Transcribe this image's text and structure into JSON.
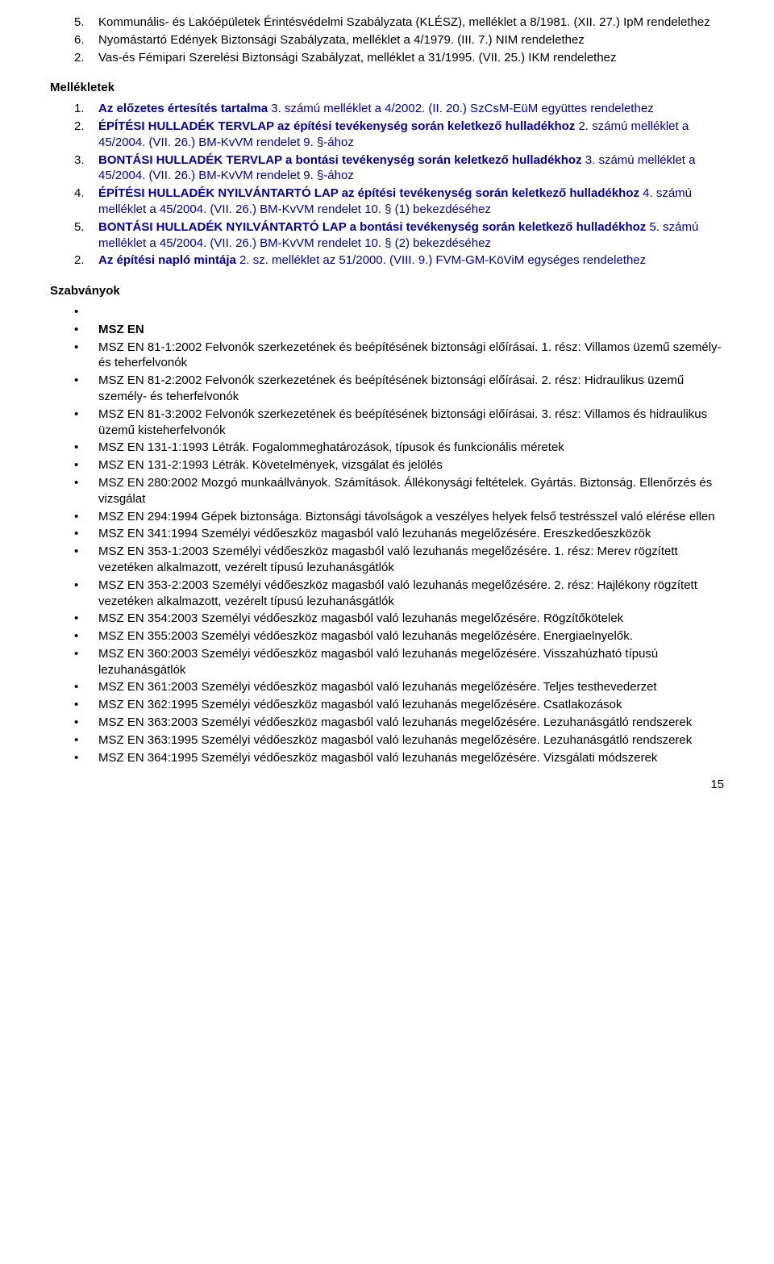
{
  "top_list": [
    {
      "n": "5.",
      "t": "Kommunális- és Lakóépületek Érintésvédelmi Szabályzata (KLÉSZ), melléklet a 8/1981. (XII. 27.) IpM rendelethez"
    },
    {
      "n": "6.",
      "t": "Nyomástartó Edények Biztonsági Szabályzata, melléklet a 4/1979. (III. 7.) NIM rendelethez"
    },
    {
      "n": "2.",
      "t": "Vas-és Fémipari Szerelési Biztonsági Szabályzat, melléklet a 31/1995. (VII. 25.) IKM rendelethez"
    }
  ],
  "mellekletek_heading": "Mellékletek",
  "mellekletek": [
    {
      "n": "1.",
      "bold": "Az előzetes értesítés tartalma",
      "rest": " 3. számú melléklet a 4/2002. (II. 20.) SzCsM-EüM együttes rendelethez"
    },
    {
      "n": "2.",
      "bold": "ÉPÍTÉSI HULLADÉK TERVLAP az építési tevékenység során keletkező hulladékhoz",
      "rest": " 2. számú melléklet a 45/2004. (VII. 26.) BM-KvVM rendelet 9. §-ához"
    },
    {
      "n": "3.",
      "bold": "BONTÁSI HULLADÉK TERVLAP a bontási tevékenység során keletkező hulladékhoz",
      "rest": " 3. számú melléklet a 45/2004. (VII. 26.) BM-KvVM rendelet 9. §-ához"
    },
    {
      "n": "4.",
      "bold": "ÉPÍTÉSI HULLADÉK NYILVÁNTARTÓ LAP az építési tevékenység során keletkező hulladékhoz",
      "rest": " 4. számú melléklet a 45/2004. (VII. 26.) BM-KvVM rendelet 10. § (1) bekezdéséhez"
    },
    {
      "n": "5.",
      "bold": "BONTÁSI HULLADÉK NYILVÁNTARTÓ LAP a bontási tevékenység során keletkező hulladékhoz",
      "rest": " 5. számú melléklet a 45/2004. (VII. 26.) BM-KvVM rendelet 10. § (2) bekezdéséhez"
    },
    {
      "n": "2.",
      "bold": "Az építési napló mintája",
      "rest": " 2. sz. melléklet az 51/2000. (VIII. 9.) FVM-GM-KöViM egységes rendelethez"
    }
  ],
  "szabvanyok_heading": "Szabványok",
  "msz_en_heading": "MSZ EN",
  "standards": [
    "MSZ EN 81-1:2002 Felvonók szerkezetének és beépítésének biztonsági előírásai. 1. rész: Villamos üzemű személy- és teherfelvonók",
    "MSZ EN 81-2:2002 Felvonók szerkezetének és beépítésének biztonsági előírásai. 2. rész: Hidraulikus üzemű személy- és teherfelvonók",
    "MSZ EN 81-3:2002 Felvonók szerkezetének és beépítésének biztonsági előírásai. 3. rész: Villamos és hidraulikus üzemű kisteherfelvonók",
    "MSZ EN 131-1:1993 Létrák. Fogalommeghatározások, típusok és funkcionális méretek",
    "MSZ EN 131-2:1993 Létrák. Követelmények, vizsgálat és jelölés",
    "MSZ EN 280:2002 Mozgó munkaállványok. Számítások. Állékonysági feltételek. Gyártás. Biztonság. Ellenőrzés és vizsgálat",
    "MSZ EN 294:1994 Gépek biztonsága. Biztonsági távolságok a veszélyes helyek felső testrésszel való elérése ellen",
    "MSZ EN 341:1994 Személyi védőeszköz magasból való lezuhanás megelőzésére. Ereszkedőeszközök",
    "MSZ EN 353-1:2003 Személyi védőeszköz magasból való lezuhanás megelőzésére. 1. rész: Merev rögzített vezetéken alkalmazott, vezérelt típusú lezuhanásgátlók",
    "MSZ EN 353-2:2003 Személyi védőeszköz magasból való lezuhanás megelőzésére. 2. rész: Hajlékony rögzített vezetéken alkalmazott, vezérelt típusú lezuhanásgátlók",
    "MSZ EN 354:2003 Személyi védőeszköz magasból való lezuhanás megelőzésére. Rögzítőkötelek",
    "MSZ EN 355:2003 Személyi védőeszköz magasból való lezuhanás megelőzésére. Energiaelnyelők.",
    "MSZ EN 360:2003 Személyi védőeszköz magasból való lezuhanás megelőzésére. Visszahúzható típusú lezuhanásgátlók",
    "MSZ EN 361:2003 Személyi védőeszköz magasból való lezuhanás megelőzésére. Teljes testhevederzet",
    "MSZ EN 362:1995 Személyi védőeszköz magasból való lezuhanás megelőzésére. Csatlakozások",
    "MSZ EN 363:2003 Személyi védőeszköz magasból való lezuhanás megelőzésére. Lezuhanásgátló rendszerek",
    "MSZ EN 363:1995 Személyi védőeszköz magasból való lezuhanás megelőzésére. Lezuhanásgátló rendszerek",
    "MSZ EN 364:1995 Személyi védőeszköz magasból való lezuhanás megelőzésére. Vizsgálati módszerek"
  ],
  "page_number": "15",
  "colors": {
    "text": "#000000",
    "link_blue": "#0000aa",
    "background": "#ffffff"
  },
  "fonts": {
    "family": "Verdana",
    "body_size_pt": 11
  }
}
